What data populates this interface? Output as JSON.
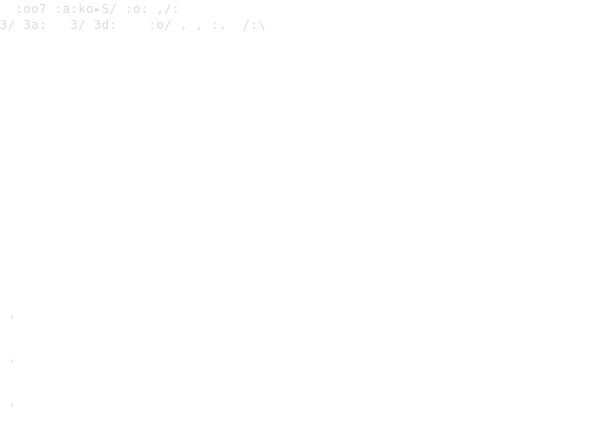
{
  "text_lines": {
    "line_1": "  :oo7 :a:ko▸S/ :o: ,/:",
    "line_2": "3/ 3a:   3/ 3d:    :o/ , , :,  /:\\"
  },
  "markers": {
    "item_1": "›",
    "item_2": "›",
    "item_3": "›"
  },
  "colors": {
    "background": "#ffffff",
    "faded_text": "#cfcfcf"
  }
}
